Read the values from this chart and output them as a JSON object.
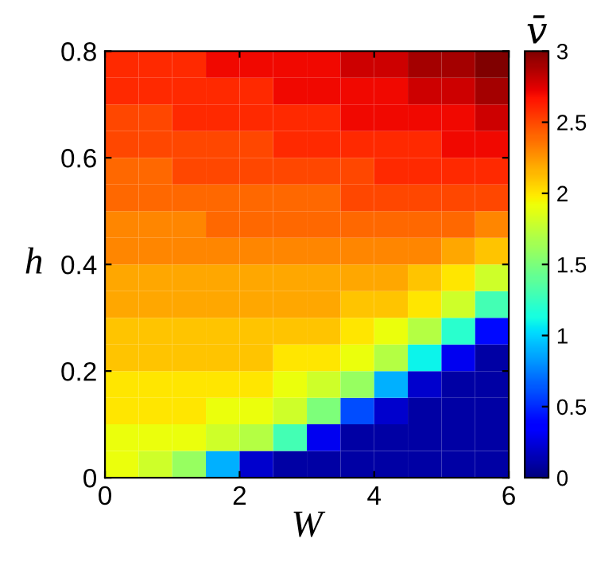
{
  "chart_data": {
    "type": "heatmap",
    "xlabel": "W",
    "ylabel": "h",
    "clabel": "v̄",
    "x": [
      0.25,
      0.75,
      1.25,
      1.75,
      2.25,
      2.75,
      3.25,
      3.75,
      4.25,
      4.75,
      5.25,
      5.75
    ],
    "y": [
      0.775,
      0.725,
      0.675,
      0.625,
      0.575,
      0.525,
      0.475,
      0.425,
      0.375,
      0.325,
      0.275,
      0.225,
      0.175,
      0.125,
      0.075,
      0.025
    ],
    "cells": [
      [
        2.6,
        2.6,
        2.6,
        2.7,
        2.7,
        2.7,
        2.7,
        2.8,
        2.8,
        2.9,
        2.9,
        3.0
      ],
      [
        2.6,
        2.6,
        2.6,
        2.6,
        2.6,
        2.7,
        2.7,
        2.7,
        2.7,
        2.8,
        2.8,
        2.9
      ],
      [
        2.5,
        2.5,
        2.6,
        2.6,
        2.6,
        2.6,
        2.6,
        2.7,
        2.7,
        2.7,
        2.7,
        2.8
      ],
      [
        2.5,
        2.5,
        2.5,
        2.5,
        2.5,
        2.6,
        2.6,
        2.6,
        2.6,
        2.6,
        2.7,
        2.7
      ],
      [
        2.4,
        2.4,
        2.5,
        2.5,
        2.5,
        2.5,
        2.5,
        2.5,
        2.6,
        2.6,
        2.6,
        2.6
      ],
      [
        2.4,
        2.4,
        2.4,
        2.4,
        2.4,
        2.4,
        2.4,
        2.5,
        2.5,
        2.5,
        2.5,
        2.5
      ],
      [
        2.3,
        2.3,
        2.3,
        2.4,
        2.4,
        2.4,
        2.4,
        2.4,
        2.4,
        2.4,
        2.4,
        2.3
      ],
      [
        2.3,
        2.3,
        2.3,
        2.3,
        2.3,
        2.3,
        2.3,
        2.3,
        2.3,
        2.3,
        2.2,
        2.1
      ],
      [
        2.2,
        2.2,
        2.2,
        2.2,
        2.2,
        2.2,
        2.2,
        2.2,
        2.2,
        2.1,
        2.0,
        1.8
      ],
      [
        2.2,
        2.2,
        2.2,
        2.2,
        2.2,
        2.2,
        2.2,
        2.1,
        2.1,
        2.0,
        1.8,
        1.3
      ],
      [
        2.1,
        2.1,
        2.1,
        2.1,
        2.1,
        2.1,
        2.1,
        2.0,
        1.9,
        1.7,
        1.2,
        0.4
      ],
      [
        2.1,
        2.1,
        2.1,
        2.1,
        2.1,
        2.0,
        2.0,
        1.9,
        1.7,
        1.1,
        0.3,
        0.1
      ],
      [
        2.0,
        2.0,
        2.0,
        2.0,
        2.0,
        1.9,
        1.8,
        1.6,
        0.9,
        0.2,
        0.1,
        0.1
      ],
      [
        2.0,
        2.0,
        2.0,
        1.9,
        1.9,
        1.8,
        1.5,
        0.6,
        0.2,
        0.1,
        0.1,
        0.1
      ],
      [
        1.9,
        1.9,
        1.9,
        1.8,
        1.7,
        1.3,
        0.3,
        0.1,
        0.1,
        0.1,
        0.1,
        0.1
      ],
      [
        1.9,
        1.8,
        1.6,
        0.9,
        0.2,
        0.1,
        0.1,
        0.1,
        0.1,
        0.1,
        0.1,
        0.1
      ]
    ],
    "xlim": [
      0,
      6
    ],
    "ylim": [
      0,
      0.8
    ],
    "xticks": [
      0,
      2,
      4,
      6
    ],
    "yticks": [
      0,
      0.2,
      0.4,
      0.6,
      0.8
    ],
    "clim": [
      0,
      3
    ],
    "cticks": [
      0,
      0.5,
      1,
      1.5,
      2,
      2.5,
      3
    ]
  }
}
